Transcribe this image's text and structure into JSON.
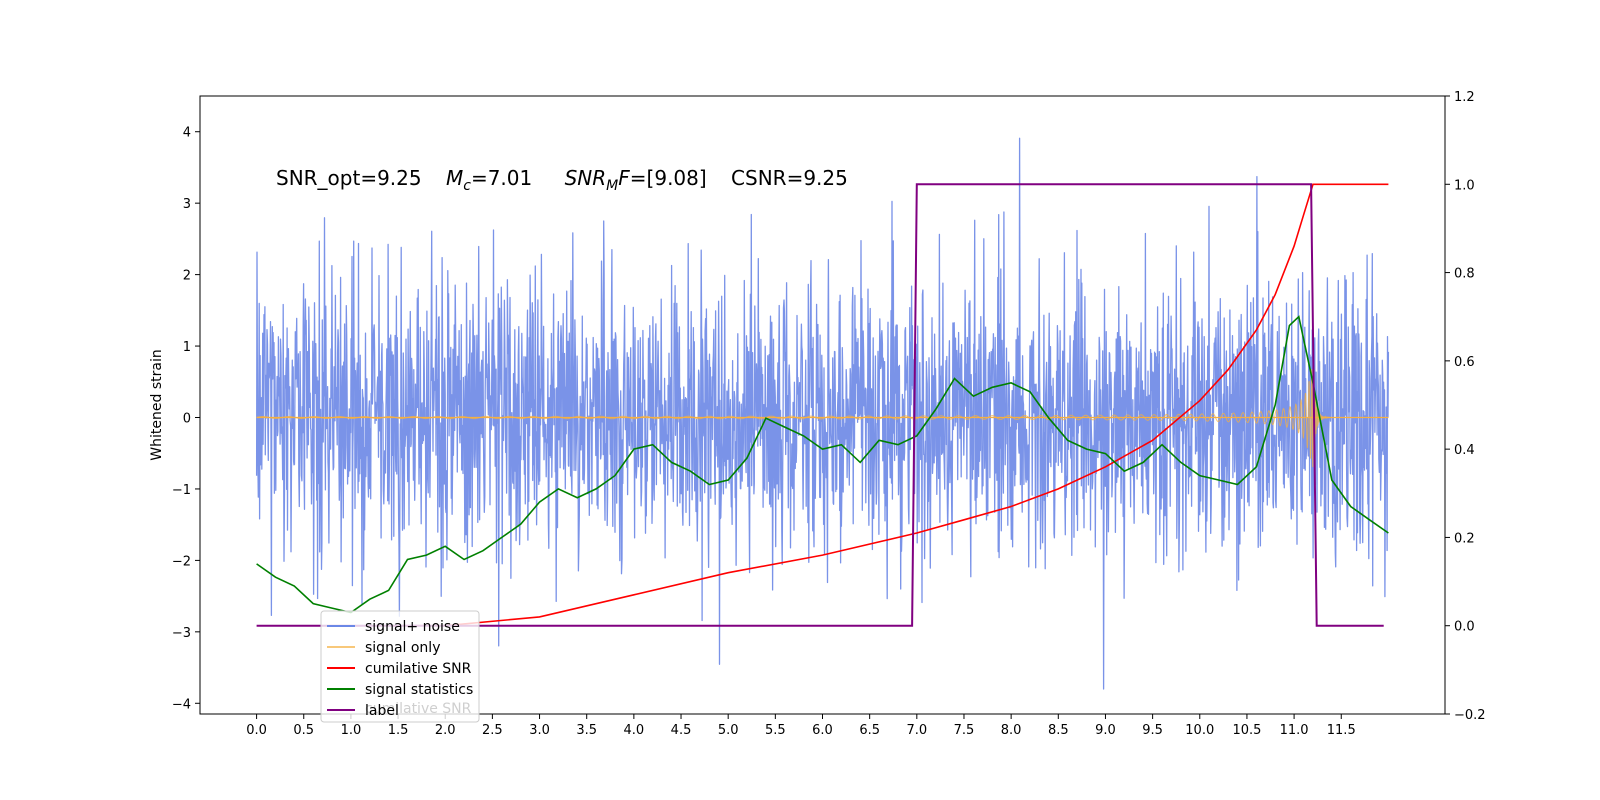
{
  "chart_data": {
    "type": "line",
    "title": "",
    "annotation": {
      "snr_opt": "SNR_opt=9.25",
      "mc_sym": "M",
      "mc_sub": "c",
      "mc_val": "=7.01",
      "snrmf_sym": "SNR",
      "snrmf_sub": "M",
      "snrmf_f": "F",
      "snrmf_val": "=[9.08]",
      "csnr": "CSNR=9.25"
    },
    "xlabel": "",
    "ylabel": "Whitened strain",
    "ylabel_right": "",
    "xlim": [
      -0.6,
      12.6
    ],
    "ylim_left": [
      -4.15,
      4.5
    ],
    "ylim_right": [
      -0.2,
      1.2
    ],
    "x_ticks": [
      "0.0",
      "0.5",
      "1.0",
      "1.5",
      "2.0",
      "2.5",
      "3.0",
      "3.5",
      "4.0",
      "4.5",
      "5.0",
      "5.5",
      "6.0",
      "6.5",
      "7.0",
      "7.5",
      "8.0",
      "8.5",
      "9.0",
      "9.5",
      "10.0",
      "10.5",
      "11.0",
      "11.5"
    ],
    "y_ticks_left": [
      "−4",
      "−3",
      "−2",
      "−1",
      "0",
      "1",
      "2",
      "3",
      "4"
    ],
    "y_ticks_right": [
      "−0.2",
      "0.0",
      "0.2",
      "0.4",
      "0.6",
      "0.8",
      "1.0",
      "1.2"
    ],
    "grid": false,
    "legend_position": "lower-left",
    "series": [
      {
        "name": "signal+ noise",
        "axis": "left",
        "color": "#6b87e6",
        "description": "dense whitened noise, roughly within ±2.5 with spikes up to ±4, x from 0 to 12"
      },
      {
        "name": "signal only",
        "axis": "left",
        "color": "#f5b041",
        "chirp": {
          "x_start": 0.0,
          "x_end": 12.0,
          "merger_x": 11.2,
          "peak_amplitude": 0.7
        }
      },
      {
        "name": "cumilative SNR",
        "axis": "right",
        "color": "#ff0000",
        "x": [
          1.5,
          2.0,
          3.0,
          4.0,
          5.0,
          6.0,
          7.0,
          7.5,
          8.0,
          8.5,
          9.0,
          9.5,
          10.0,
          10.3,
          10.6,
          10.8,
          11.0,
          11.1,
          11.2,
          11.5,
          12.0
        ],
        "y": [
          0.0,
          0.0,
          0.02,
          0.07,
          0.12,
          0.16,
          0.21,
          0.24,
          0.27,
          0.31,
          0.36,
          0.42,
          0.51,
          0.58,
          0.67,
          0.75,
          0.86,
          0.93,
          1.0,
          1.0,
          1.0
        ]
      },
      {
        "name": "signal statistics",
        "axis": "right",
        "color": "#008000",
        "x": [
          0.0,
          0.2,
          0.4,
          0.6,
          0.8,
          1.0,
          1.2,
          1.4,
          1.6,
          1.8,
          2.0,
          2.2,
          2.4,
          2.6,
          2.8,
          3.0,
          3.2,
          3.4,
          3.6,
          3.8,
          4.0,
          4.2,
          4.4,
          4.6,
          4.8,
          5.0,
          5.2,
          5.4,
          5.6,
          5.8,
          6.0,
          6.2,
          6.4,
          6.6,
          6.8,
          7.0,
          7.2,
          7.4,
          7.6,
          7.8,
          8.0,
          8.2,
          8.4,
          8.6,
          8.8,
          9.0,
          9.2,
          9.4,
          9.6,
          9.8,
          10.0,
          10.2,
          10.4,
          10.6,
          10.8,
          10.95,
          11.05,
          11.2,
          11.4,
          11.6,
          11.8,
          12.0
        ],
        "y": [
          0.14,
          0.11,
          0.09,
          0.05,
          0.04,
          0.03,
          0.06,
          0.08,
          0.15,
          0.16,
          0.18,
          0.15,
          0.17,
          0.2,
          0.23,
          0.28,
          0.31,
          0.29,
          0.31,
          0.34,
          0.4,
          0.41,
          0.37,
          0.35,
          0.32,
          0.33,
          0.38,
          0.47,
          0.45,
          0.43,
          0.4,
          0.41,
          0.37,
          0.42,
          0.41,
          0.43,
          0.49,
          0.56,
          0.52,
          0.54,
          0.55,
          0.53,
          0.47,
          0.42,
          0.4,
          0.39,
          0.35,
          0.37,
          0.41,
          0.37,
          0.34,
          0.33,
          0.32,
          0.36,
          0.5,
          0.68,
          0.7,
          0.55,
          0.33,
          0.27,
          0.24,
          0.21
        ]
      },
      {
        "name": "label",
        "axis": "right",
        "color": "#800080",
        "x": [
          0.0,
          6.95,
          7.0,
          11.18,
          11.24,
          11.95
        ],
        "y": [
          0.0,
          0.0,
          1.0,
          1.0,
          0.0,
          0.0
        ]
      }
    ],
    "legend_ghost_text": "cumilative SNR"
  }
}
